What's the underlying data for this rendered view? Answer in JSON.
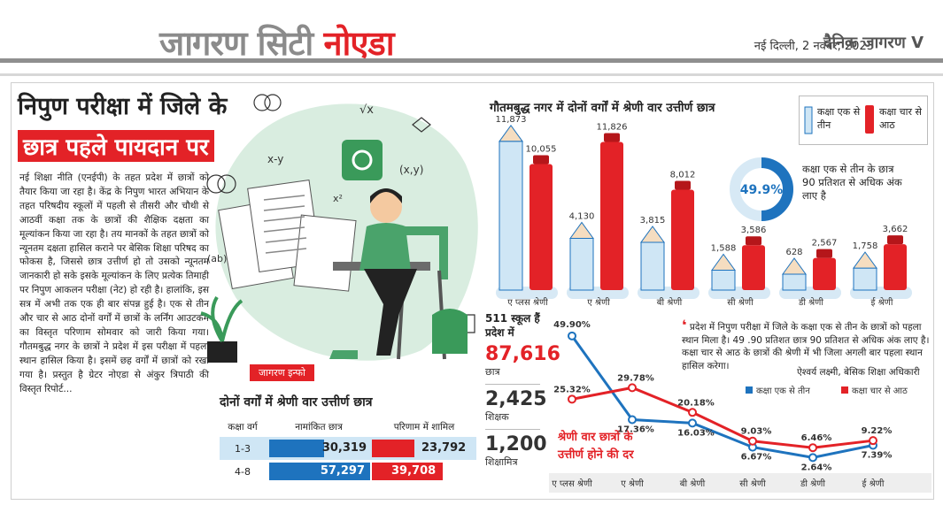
{
  "masthead": {
    "brand_part1": "जागरण सिटी",
    "brand_part2": "नोएडा",
    "dateline": "नई दिल्ली, 2 नवंबर, 2023",
    "paper_name": "दैनिक जागरण V"
  },
  "article": {
    "headline_line1": "निपुण परीक्षा में जिले के",
    "headline_line2": "छात्र पहले पायदान पर",
    "body": "नई शिक्षा नीति (एनईपी) के तहत प्रदेश में छात्रों को तैयार किया जा रहा है। केंद्र के निपुण भारत अभियान के तहत परिषदीय स्कूलों में पहली से तीसरी और चौथी से आठवीं कक्षा तक के छात्रों की शैक्षिक दक्षता का मूल्यांकन किया जा रहा है। तय मानकों के तहत छात्रों को न्यूनतम दक्षता हासिल कराने पर बेसिक शिक्षा परिषद का फोकस है, जिससे छात्र उत्तीर्ण हो तो उसको न्यूनतम जानकारी हो सके इसके मूल्यांकन के लिए प्रत्येक तिमाही पर निपुण आकलन परीक्षा (नेट) हो रही है। हालांकि, इस सत्र में अभी तक एक ही बार संपन्न हुई है। एक से तीन और चार से आठ दोनों वर्गों में छात्रों के लर्निंग आउटकम का विस्तृत परिणाम सोमवार को जारी किया गया। गौतमबुद्ध नगर के छात्रों ने प्रदेश में इस परीक्षा में पहला स्थान हासिल किया है। इसमें छह वर्गों में छात्रों को रखा गया है। प्रस्तुत है ग्रेटर नोएडा से अंकुर त्रिपाठी की विस्तृत रिपोर्ट..."
  },
  "illustration": {
    "tag": "जागरण इन्फो"
  },
  "table": {
    "title": "दोनों वर्गों में श्रेणी वार उत्तीर्ण छात्र",
    "headers": [
      "कक्षा वर्ग",
      "नामांकित छात्र",
      "परिणाम में शामिल"
    ],
    "rows": [
      {
        "class": "1-3",
        "enrolled": "30,319",
        "result": "23,792"
      },
      {
        "class": "4-8",
        "enrolled": "57,297",
        "result": "39,708"
      }
    ]
  },
  "stats": {
    "schools": "511 स्कूल हैं प्रदेश में",
    "students_value": "87,616",
    "students_label": "छात्र",
    "teachers_value": "2,425",
    "teachers_label": "शिक्षक",
    "shikshamitra_value": "1,200",
    "shikshamitra_label": "शिक्षामित्र"
  },
  "pencil_chart": {
    "title": "गौतमबुद्ध नगर में दोनों वर्गों में श्रेणी वार उत्तीर्ण छात्र",
    "legend_a": "कक्षा एक से तीन",
    "legend_b": "कक्षा चार से आठ",
    "donut_value": "49.9%",
    "donut_text": "कक्षा एक से तीन के छात्र 90 प्रतिशत से अधिक अंक लाए है"
  },
  "line_chart": {
    "label": "श्रेणी वार छात्रों के उत्तीर्ण होने की दर",
    "legend_a": "कक्षा एक से तीन",
    "legend_b": "कक्षा चार से आठ",
    "quote": "प्रदेश में निपुण परीक्षा में जिले के कक्षा एक से तीन के छात्रों को पहला स्थान मिला है। 49 .90 प्रतिशत छात्र 90 प्रतिशत से अधिक अंक लाए है। कक्षा चार से आठ के छात्रों की श्रेणी में भी जिला अगली बार पहला स्थान हासिल करेगा।",
    "author": "ऐश्वर्य लक्ष्मी, बेसिक शिक्षा अधिकारी"
  },
  "colors": {
    "red": "#e32227",
    "blue": "#1e73be",
    "light_blue": "#cfe6f5"
  },
  "chart_data": [
    {
      "type": "bar",
      "title": "गौतमबुद्ध नगर में दोनों वर्गों में श्रेणी वार उत्तीर्ण छात्र",
      "categories": [
        "ए प्लस श्रेणी",
        "ए श्रेणी",
        "बी श्रेणी",
        "सी श्रेणी",
        "डी श्रेणी",
        "ई श्रेणी"
      ],
      "series": [
        {
          "name": "कक्षा एक से तीन",
          "values": [
            11873,
            4130,
            3815,
            1588,
            628,
            1758
          ],
          "labels": [
            "11,873",
            "4,130",
            "3,815",
            "1,588",
            "628",
            "1,758"
          ]
        },
        {
          "name": "कक्षा चार से आठ",
          "values": [
            10055,
            11826,
            8012,
            3586,
            2567,
            3662
          ],
          "labels": [
            "10,055",
            "11,826",
            "8,012",
            "3,586",
            "2,567",
            "3,662"
          ]
        }
      ],
      "ylim": [
        0,
        12000
      ]
    },
    {
      "type": "line",
      "title": "श्रेणी वार छात्रों के उत्तीर्ण होने की दर",
      "categories": [
        "ए प्लस श्रेणी",
        "ए श्रेणी",
        "बी श्रेणी",
        "सी श्रेणी",
        "डी श्रेणी",
        "ई श्रेणी"
      ],
      "series": [
        {
          "name": "कक्षा एक से तीन",
          "values": [
            49.9,
            17.36,
            16.03,
            6.67,
            2.64,
            7.39
          ],
          "labels": [
            "49.90%",
            "17.36%",
            "16.03%",
            "6.67%",
            "2.64%",
            "7.39%"
          ]
        },
        {
          "name": "कक्षा चार से आठ",
          "values": [
            25.32,
            29.78,
            20.18,
            9.03,
            6.46,
            9.22
          ],
          "labels": [
            "25.32%",
            "29.78%",
            "20.18%",
            "9.03%",
            "6.46%",
            "9.22%"
          ]
        }
      ],
      "ylim": [
        0,
        55
      ]
    }
  ]
}
